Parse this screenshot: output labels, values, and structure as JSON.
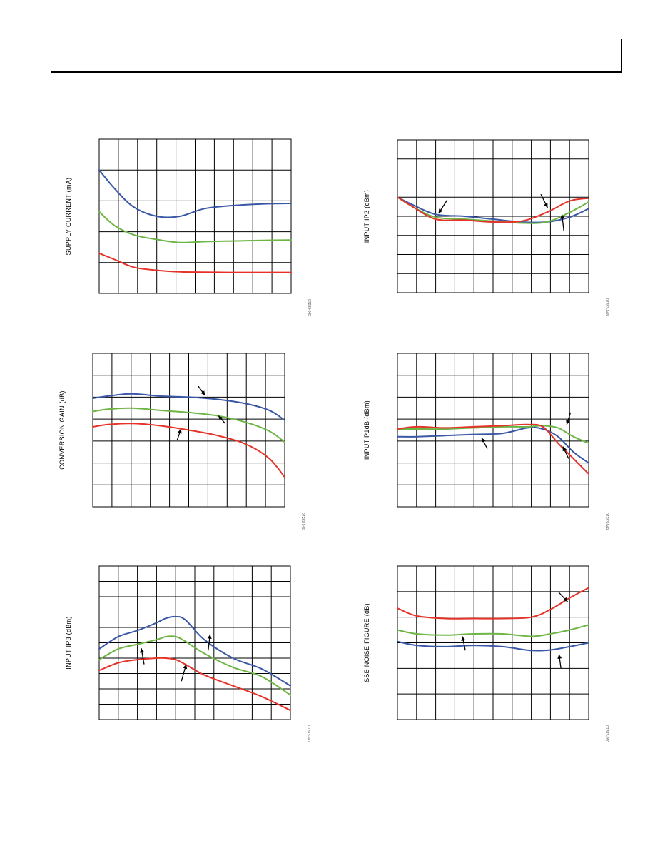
{
  "colors": {
    "blue": "#3a57a6",
    "green": "#6db545",
    "red": "#e53329"
  },
  "chart_data": [
    {
      "id": "supply-current",
      "type": "line",
      "ylabel": "SUPPLY CURRENT (mA)",
      "figure_id": "07283-045",
      "grid": true,
      "xgrid_divisions": 10,
      "ygrid_divisions": 5,
      "xlim": [
        0,
        10
      ],
      "ylim": [
        0,
        5
      ],
      "series": [
        {
          "color": "blue",
          "x": [
            0,
            0.8,
            1.8,
            3,
            4.2,
            5.5,
            7,
            8.5,
            10
          ],
          "y": [
            4.0,
            3.4,
            2.8,
            2.5,
            2.5,
            2.75,
            2.85,
            2.9,
            2.92
          ]
        },
        {
          "color": "green",
          "x": [
            0,
            0.8,
            1.8,
            3,
            4.2,
            5.5,
            7,
            8.5,
            10
          ],
          "y": [
            2.65,
            2.2,
            1.9,
            1.75,
            1.65,
            1.68,
            1.7,
            1.72,
            1.73
          ]
        },
        {
          "color": "red",
          "x": [
            0,
            0.8,
            1.8,
            3,
            4.2,
            5.5,
            7,
            8.5,
            10
          ],
          "y": [
            1.3,
            1.1,
            0.85,
            0.75,
            0.7,
            0.69,
            0.68,
            0.68,
            0.68
          ]
        }
      ],
      "arrows": []
    },
    {
      "id": "input-ip2",
      "type": "line",
      "ylabel": "INPUT IP2 (dBm)",
      "figure_id": "07283-048",
      "grid": true,
      "xgrid_divisions": 10,
      "ygrid_divisions": 8,
      "xlim": [
        0,
        10
      ],
      "ylim": [
        0,
        8
      ],
      "series": [
        {
          "color": "blue",
          "x": [
            0,
            0.8,
            2,
            3.5,
            5,
            6.5,
            7.8,
            9,
            10
          ],
          "y": [
            5.0,
            4.6,
            4.1,
            4.0,
            3.85,
            3.7,
            3.7,
            3.95,
            4.4
          ]
        },
        {
          "color": "green",
          "x": [
            0,
            0.8,
            2,
            3.5,
            5,
            6.5,
            7.8,
            9,
            10
          ],
          "y": [
            5.0,
            4.5,
            3.95,
            3.85,
            3.75,
            3.65,
            3.7,
            4.2,
            4.75
          ]
        },
        {
          "color": "red",
          "x": [
            0,
            0.8,
            2,
            3.5,
            5,
            6.5,
            7.8,
            9,
            10
          ],
          "y": [
            5.0,
            4.5,
            3.85,
            3.8,
            3.7,
            3.75,
            4.2,
            4.8,
            4.95
          ]
        }
      ],
      "arrows": [
        {
          "x1": 2.6,
          "y1": 4.85,
          "x2": 2.15,
          "y2": 4.15
        },
        {
          "x1": 7.5,
          "y1": 5.15,
          "x2": 7.85,
          "y2": 4.45
        },
        {
          "x1": 8.7,
          "y1": 3.25,
          "x2": 8.6,
          "y2": 4.1
        }
      ]
    },
    {
      "id": "conversion-gain",
      "type": "line",
      "ylabel": "CONVERSION GAIN (dB)",
      "figure_id": "07283-046",
      "grid": true,
      "xgrid_divisions": 10,
      "ygrid_divisions": 7,
      "xlim": [
        0,
        10
      ],
      "ylim": [
        0,
        7
      ],
      "series": [
        {
          "color": "blue",
          "x": [
            0,
            0.8,
            2,
            3.5,
            5,
            6.5,
            8,
            9.2,
            10
          ],
          "y": [
            4.95,
            5.05,
            5.15,
            5.05,
            5.0,
            4.9,
            4.7,
            4.4,
            3.95
          ]
        },
        {
          "color": "green",
          "x": [
            0,
            0.8,
            2,
            3.5,
            5,
            6.5,
            8,
            9.2,
            10
          ],
          "y": [
            4.35,
            4.45,
            4.5,
            4.4,
            4.3,
            4.15,
            3.85,
            3.45,
            2.95
          ]
        },
        {
          "color": "red",
          "x": [
            0,
            0.8,
            2,
            3.5,
            5,
            6.5,
            8,
            9.2,
            10
          ],
          "y": [
            3.65,
            3.75,
            3.8,
            3.7,
            3.5,
            3.25,
            2.85,
            2.2,
            1.35
          ]
        }
      ],
      "arrows": [
        {
          "x1": 5.5,
          "y1": 5.5,
          "x2": 5.85,
          "y2": 5.08
        },
        {
          "x1": 6.9,
          "y1": 3.8,
          "x2": 6.55,
          "y2": 4.15
        },
        {
          "x1": 4.4,
          "y1": 3.05,
          "x2": 4.6,
          "y2": 3.55
        }
      ]
    },
    {
      "id": "input-p1db",
      "type": "line",
      "ylabel": "INPUT P1dB (dBm)",
      "figure_id": "07283-049",
      "grid": true,
      "xgrid_divisions": 10,
      "ygrid_divisions": 7,
      "xlim": [
        0,
        10
      ],
      "ylim": [
        0,
        7
      ],
      "series": [
        {
          "color": "blue",
          "x": [
            0,
            1,
            2.5,
            4,
            5.5,
            6.8,
            7.6,
            8.4,
            9.2,
            10
          ],
          "y": [
            3.2,
            3.2,
            3.25,
            3.3,
            3.35,
            3.6,
            3.55,
            3.2,
            2.5,
            2.0
          ]
        },
        {
          "color": "green",
          "x": [
            0,
            1,
            2.5,
            4,
            5.5,
            6.8,
            7.6,
            8.4,
            9.2,
            10
          ],
          "y": [
            3.55,
            3.55,
            3.55,
            3.6,
            3.65,
            3.65,
            3.7,
            3.6,
            3.2,
            2.9
          ]
        },
        {
          "color": "red",
          "x": [
            0,
            1,
            2.5,
            4,
            5.5,
            6.8,
            7.6,
            8.4,
            9.2,
            10
          ],
          "y": [
            3.55,
            3.65,
            3.6,
            3.65,
            3.7,
            3.75,
            3.65,
            2.9,
            2.2,
            1.5
          ]
        }
      ],
      "arrows": [
        {
          "x1": 9.05,
          "y1": 4.3,
          "x2": 8.85,
          "y2": 3.75
        },
        {
          "x1": 8.95,
          "y1": 2.2,
          "x2": 8.65,
          "y2": 2.75
        },
        {
          "x1": 4.7,
          "y1": 2.65,
          "x2": 4.4,
          "y2": 3.15
        }
      ]
    },
    {
      "id": "input-ip3",
      "type": "line",
      "ylabel": "INPUT IP3 (dBm)",
      "figure_id": "07283-047",
      "grid": true,
      "xgrid_divisions": 10,
      "ygrid_divisions": 10,
      "xlim": [
        0,
        10
      ],
      "ylim": [
        0,
        10
      ],
      "series": [
        {
          "color": "blue",
          "x": [
            0,
            1,
            2,
            3,
            3.5,
            4,
            4.5,
            5.5,
            7,
            8.5,
            10
          ],
          "y": [
            4.6,
            5.4,
            5.8,
            6.3,
            6.6,
            6.7,
            6.5,
            5.2,
            4.0,
            3.3,
            2.2
          ]
        },
        {
          "color": "green",
          "x": [
            0,
            1,
            2,
            3,
            3.5,
            4,
            4.5,
            5.5,
            7,
            8.5,
            10
          ],
          "y": [
            3.9,
            4.6,
            4.9,
            5.2,
            5.4,
            5.4,
            5.1,
            4.3,
            3.4,
            2.8,
            1.6
          ]
        },
        {
          "color": "red",
          "x": [
            0,
            1,
            2,
            3,
            3.5,
            4,
            4.5,
            5.5,
            7,
            8.5,
            10
          ],
          "y": [
            3.2,
            3.7,
            3.9,
            4.0,
            4.0,
            3.9,
            3.6,
            2.9,
            2.2,
            1.5,
            0.6
          ]
        }
      ],
      "arrows": [
        {
          "x1": 5.7,
          "y1": 4.5,
          "x2": 5.8,
          "y2": 5.55
        },
        {
          "x1": 2.35,
          "y1": 3.6,
          "x2": 2.2,
          "y2": 4.65
        },
        {
          "x1": 4.3,
          "y1": 2.5,
          "x2": 4.55,
          "y2": 3.6
        }
      ]
    },
    {
      "id": "ssb-noise-figure",
      "type": "line",
      "ylabel": "SSB NOISE FIGURE (dB)",
      "figure_id": "07283-050",
      "grid": true,
      "xgrid_divisions": 10,
      "ygrid_divisions": 6,
      "xlim": [
        0,
        10
      ],
      "ylim": [
        0,
        6
      ],
      "series": [
        {
          "color": "blue",
          "x": [
            0,
            1,
            2.5,
            4,
            5.5,
            7,
            8,
            9,
            10
          ],
          "y": [
            3.05,
            2.9,
            2.85,
            2.9,
            2.85,
            2.7,
            2.72,
            2.85,
            3.0
          ]
        },
        {
          "color": "green",
          "x": [
            0,
            1,
            2.5,
            4,
            5.5,
            7,
            8,
            9,
            10
          ],
          "y": [
            3.5,
            3.35,
            3.3,
            3.35,
            3.35,
            3.25,
            3.35,
            3.5,
            3.7
          ]
        },
        {
          "color": "red",
          "x": [
            0,
            1,
            2.5,
            4,
            5.5,
            7,
            8,
            9,
            10
          ],
          "y": [
            4.35,
            4.05,
            3.95,
            3.95,
            3.95,
            4.0,
            4.3,
            4.75,
            5.15
          ]
        }
      ],
      "arrows": [
        {
          "x1": 8.4,
          "y1": 5.0,
          "x2": 8.9,
          "y2": 4.6
        },
        {
          "x1": 3.55,
          "y1": 2.7,
          "x2": 3.4,
          "y2": 3.25
        },
        {
          "x1": 8.55,
          "y1": 2.0,
          "x2": 8.45,
          "y2": 2.55
        }
      ]
    }
  ]
}
